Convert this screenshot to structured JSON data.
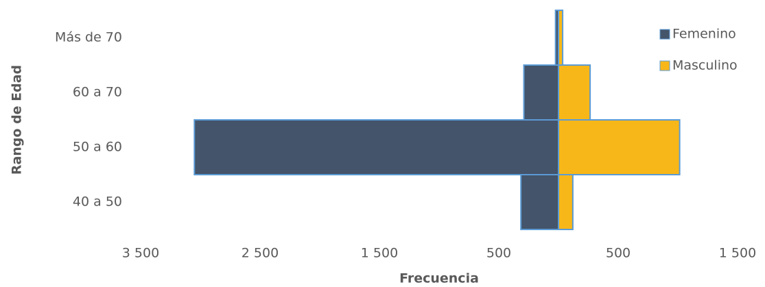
{
  "chart_data": {
    "type": "bar",
    "orientation": "horizontal",
    "stacked": true,
    "x_axis_title": "Frecuencia",
    "y_axis_title": "Rango de Edad",
    "categories": [
      "40 a 50",
      "50 a 60",
      "60 a 70",
      "Más de 70"
    ],
    "series": [
      {
        "name": "Femenino",
        "color": "#44546a",
        "values": [
          -315,
          -3050,
          -290,
          -25
        ]
      },
      {
        "name": "Masculino",
        "color": "#f8b719",
        "values": [
          120,
          1015,
          265,
          35
        ]
      }
    ],
    "xlim": [
      -3500,
      1500
    ],
    "xticks": [
      {
        "value": -3500,
        "label": "3 500"
      },
      {
        "value": -2500,
        "label": "2 500"
      },
      {
        "value": -1500,
        "label": "1 500"
      },
      {
        "value": -500,
        "label": "500"
      },
      500,
      {
        "value": 1500,
        "label": "1 500"
      }
    ],
    "grid": false,
    "legend": "top-right",
    "bar_edge_color": "#5b9bd5"
  }
}
